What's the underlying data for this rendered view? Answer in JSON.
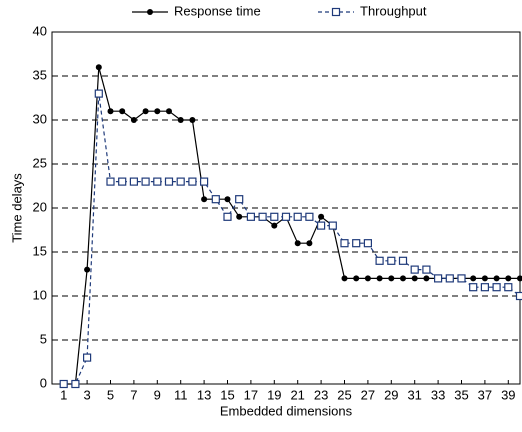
{
  "chart_data": {
    "type": "line",
    "xlabel": "Embedded dimensions",
    "ylabel": "Time delays",
    "x": [
      1,
      2,
      3,
      4,
      5,
      6,
      7,
      8,
      9,
      10,
      11,
      12,
      13,
      14,
      15,
      16,
      17,
      18,
      19,
      20,
      21,
      22,
      23,
      24,
      25,
      26,
      27,
      28,
      29,
      30,
      31,
      32,
      33,
      34,
      35,
      36,
      37,
      38,
      39,
      40
    ],
    "series": [
      {
        "name": "Response time",
        "color": "#000000",
        "values": [
          0,
          0,
          13,
          36,
          31,
          31,
          30,
          31,
          31,
          31,
          30,
          30,
          21,
          21,
          21,
          19,
          19,
          19,
          18,
          19,
          16,
          16,
          19,
          18,
          12,
          12,
          12,
          12,
          12,
          12,
          12,
          12,
          12,
          12,
          12,
          12,
          12,
          12,
          12,
          12
        ]
      },
      {
        "name": "Throughput",
        "color": "#1f3a7a",
        "values": [
          0,
          0,
          3,
          33,
          23,
          23,
          23,
          23,
          23,
          23,
          23,
          23,
          23,
          21,
          19,
          21,
          19,
          19,
          19,
          19,
          19,
          19,
          18,
          18,
          16,
          16,
          16,
          14,
          14,
          14,
          13,
          13,
          12,
          12,
          12,
          11,
          11,
          11,
          11,
          10
        ]
      }
    ],
    "xlim": [
      0,
      40
    ],
    "xticks": [
      1,
      3,
      5,
      7,
      9,
      11,
      13,
      15,
      17,
      19,
      21,
      23,
      25,
      27,
      29,
      31,
      33,
      35,
      37,
      39
    ],
    "ylim": [
      0,
      40
    ],
    "yticks": [
      0,
      5,
      10,
      15,
      20,
      25,
      30,
      35,
      40
    ],
    "grid": true,
    "legend": "top"
  }
}
